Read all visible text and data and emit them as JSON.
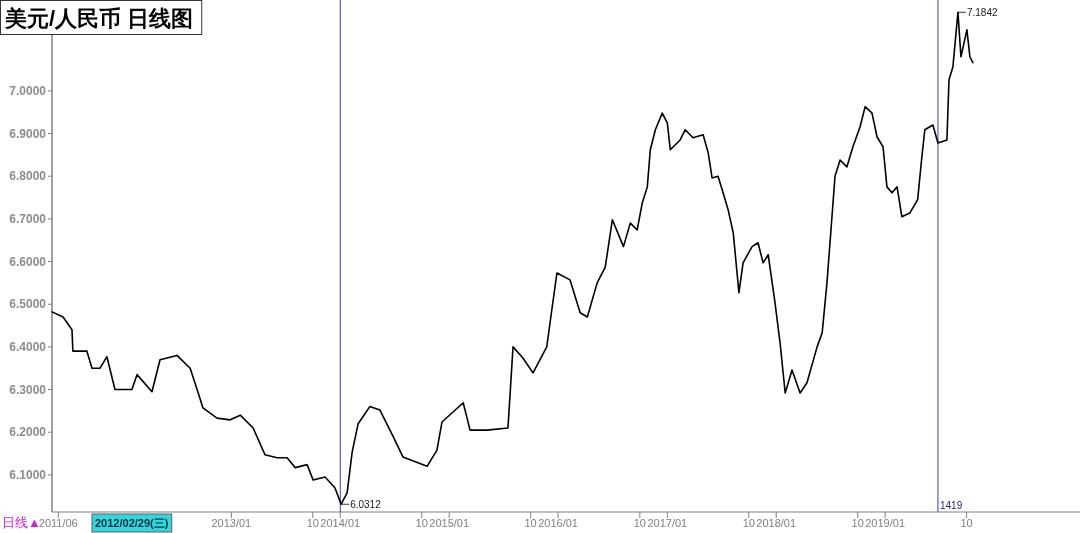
{
  "chart_data": {
    "type": "line",
    "title": "美元/人民币 日线图",
    "xlim": [
      "2011-05-11",
      "2020-10-15"
    ],
    "ylim": [
      6.013,
      7.213
    ],
    "yticks": [
      {
        "value": 6.1,
        "label": "6.1000"
      },
      {
        "value": 6.2,
        "label": "6.2000"
      },
      {
        "value": 6.3,
        "label": "6.3000"
      },
      {
        "value": 6.4,
        "label": "6.4000"
      },
      {
        "value": 6.5,
        "label": "6.5000"
      },
      {
        "value": 6.6,
        "label": "6.6000"
      },
      {
        "value": 6.7,
        "label": "6.7000"
      },
      {
        "value": 6.8,
        "label": "6.8000"
      },
      {
        "value": 6.9,
        "label": "6.9000"
      },
      {
        "value": 7.0,
        "label": "7.0000"
      }
    ],
    "xticks": [
      {
        "value": "2011-06-01",
        "label": "2011/06"
      },
      {
        "value": "2013-01-01",
        "label": "2013/01"
      },
      {
        "value": "2013-10-01",
        "label": "10"
      },
      {
        "value": "2014-01-01",
        "label": "2014/01"
      },
      {
        "value": "2014-10-01",
        "label": "10"
      },
      {
        "value": "2015-01-01",
        "label": "2015/01"
      },
      {
        "value": "2015-10-01",
        "label": "10"
      },
      {
        "value": "2016-01-01",
        "label": "2016/01"
      },
      {
        "value": "2016-10-01",
        "label": "10"
      },
      {
        "value": "2017-01-01",
        "label": "2017/01"
      },
      {
        "value": "2017-10-01",
        "label": "10"
      },
      {
        "value": "2018-01-01",
        "label": "2018/01"
      },
      {
        "value": "2018-10-01",
        "label": "10"
      },
      {
        "value": "2019-01-01",
        "label": "2019/01"
      },
      {
        "value": "2019-10-01",
        "label": "10"
      }
    ],
    "x": [
      "2011-05-11",
      "2011-06-17",
      "2011-07-17",
      "2011-07-20",
      "2011-09-05",
      "2011-09-22",
      "2011-10-19",
      "2011-11-11",
      "2011-12-08",
      "2012-02-03",
      "2012-02-20",
      "2012-04-10",
      "2012-05-07",
      "2012-07-03",
      "2012-08-16",
      "2012-09-12",
      "2012-09-28",
      "2012-11-14",
      "2012-12-28",
      "2013-01-31",
      "2013-03-15",
      "2013-04-24",
      "2013-06-03",
      "2013-07-07",
      "2013-08-03",
      "2013-09-12",
      "2013-10-02",
      "2013-11-11",
      "2013-12-14",
      "2014-01-04",
      "2014-01-24",
      "2014-02-10",
      "2014-03-02",
      "2014-04-10",
      "2014-05-14",
      "2014-06-27",
      "2014-07-30",
      "2014-10-19",
      "2014-11-21",
      "2014-12-08",
      "2015-02-17",
      "2015-03-12",
      "2015-05-08",
      "2015-07-17",
      "2015-08-03",
      "2015-09-05",
      "2015-10-09",
      "2015-11-24",
      "2015-12-11",
      "2015-12-28",
      "2016-02-10",
      "2016-03-15",
      "2016-04-08",
      "2016-05-11",
      "2016-06-07",
      "2016-07-01",
      "2016-08-07",
      "2016-08-30",
      "2016-09-22",
      "2016-10-09",
      "2016-10-26",
      "2016-11-05",
      "2016-11-22",
      "2016-12-15",
      "2017-01-01",
      "2017-01-11",
      "2017-02-13",
      "2017-03-02",
      "2017-03-28",
      "2017-05-01",
      "2017-05-18",
      "2017-05-31",
      "2017-06-20",
      "2017-07-07",
      "2017-07-24",
      "2017-08-10",
      "2017-08-29",
      "2017-09-12",
      "2017-10-12",
      "2017-11-01",
      "2017-11-18",
      "2017-12-05",
      "2017-12-28",
      "2018-01-14",
      "2018-01-31",
      "2018-02-23",
      "2018-03-22",
      "2018-04-14",
      "2018-05-18",
      "2018-06-04",
      "2018-06-20",
      "2018-07-01",
      "2018-07-17",
      "2018-08-03",
      "2018-08-26",
      "2018-09-15",
      "2018-10-09",
      "2018-10-26",
      "2018-11-18",
      "2018-12-05",
      "2018-12-25",
      "2019-01-07",
      "2019-01-24",
      "2019-02-10",
      "2019-02-26",
      "2019-03-25",
      "2019-04-20",
      "2019-05-04",
      "2019-05-14",
      "2019-06-10",
      "2019-06-27",
      "2019-07-27",
      "2019-08-03",
      "2019-08-16",
      "2019-09-02",
      "2019-09-12",
      "2019-10-02",
      "2019-10-12",
      "2019-10-22"
    ],
    "series": [
      {
        "color": "#000000",
        "values": [
          6.482,
          6.47,
          6.44,
          6.39,
          6.39,
          6.35,
          6.35,
          6.377,
          6.3,
          6.3,
          6.335,
          6.295,
          6.37,
          6.38,
          6.35,
          6.292,
          6.257,
          6.233,
          6.229,
          6.24,
          6.21,
          6.147,
          6.14,
          6.14,
          6.117,
          6.124,
          6.088,
          6.095,
          6.07,
          6.0312,
          6.058,
          6.154,
          6.22,
          6.26,
          6.252,
          6.19,
          6.142,
          6.12,
          6.158,
          6.224,
          6.269,
          6.205,
          6.205,
          6.21,
          6.4,
          6.374,
          6.339,
          6.4,
          6.487,
          6.573,
          6.557,
          6.48,
          6.47,
          6.55,
          6.587,
          6.698,
          6.635,
          6.69,
          6.674,
          6.737,
          6.775,
          6.862,
          6.909,
          6.948,
          6.925,
          6.862,
          6.885,
          6.909,
          6.89,
          6.897,
          6.855,
          6.796,
          6.8,
          6.761,
          6.721,
          6.667,
          6.527,
          6.597,
          6.635,
          6.644,
          6.597,
          6.616,
          6.503,
          6.409,
          6.292,
          6.346,
          6.292,
          6.316,
          6.4,
          6.433,
          6.55,
          6.651,
          6.8,
          6.838,
          6.822,
          6.869,
          6.916,
          6.963,
          6.948,
          6.892,
          6.869,
          6.775,
          6.761,
          6.775,
          6.705,
          6.714,
          6.745,
          6.845,
          6.909,
          6.92,
          6.878,
          6.885,
          7.026,
          7.056,
          7.1842,
          7.08,
          7.143,
          7.08,
          7.066
        ]
      }
    ],
    "ref_lines": [
      {
        "axis": "x",
        "value": "2014-01-01",
        "color": "#3a3aa8"
      },
      {
        "axis": "x",
        "value": "2019-06-27",
        "color": "#3a3aa8"
      }
    ],
    "annotations": [
      {
        "text": "6.0312",
        "x": "2014-01-04",
        "y": 6.0312
      },
      {
        "text": "7.1842",
        "x": "2019-09-02",
        "y": 7.1842
      },
      "1419",
      "2012/02/29(三)",
      "日线▲"
    ]
  }
}
